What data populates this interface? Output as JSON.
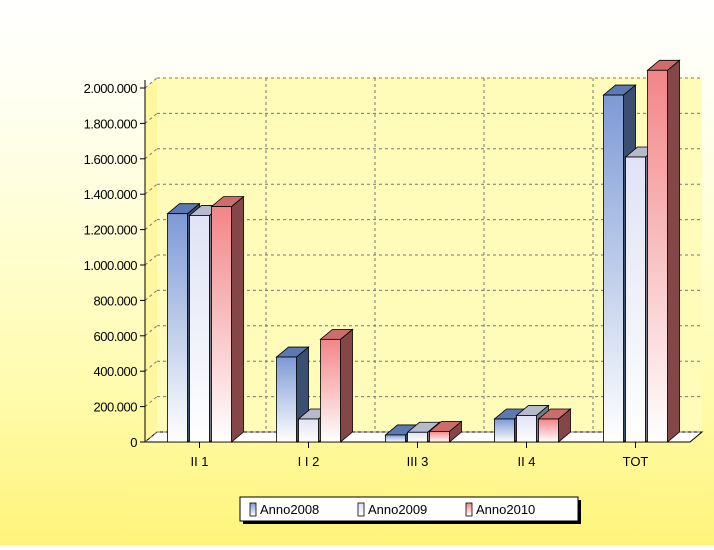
{
  "chart_data": {
    "type": "bar",
    "categories": [
      "II 1",
      "I I 2",
      "III 3",
      "II 4",
      "TOT"
    ],
    "series": [
      {
        "name": "Anno2008",
        "values": [
          1290000,
          480000,
          40000,
          130000,
          1960000
        ],
        "color": "#6c8fd0"
      },
      {
        "name": "Anno2009",
        "values": [
          1280000,
          130000,
          55000,
          150000,
          1610000
        ],
        "color": "#d6dcf0"
      },
      {
        "name": "Anno2010",
        "values": [
          1330000,
          580000,
          60000,
          130000,
          2100000
        ],
        "color": "#f07f80"
      }
    ],
    "yticks": [
      "0",
      "200.000",
      "400.000",
      "600.000",
      "800.000",
      "1.000.000",
      "1.200.000",
      "1.400.000",
      "1.600.000",
      "1.800.000",
      "2.000.000"
    ],
    "ylim": [
      0,
      2000000
    ],
    "grid": true,
    "legend_position": "bottom"
  }
}
